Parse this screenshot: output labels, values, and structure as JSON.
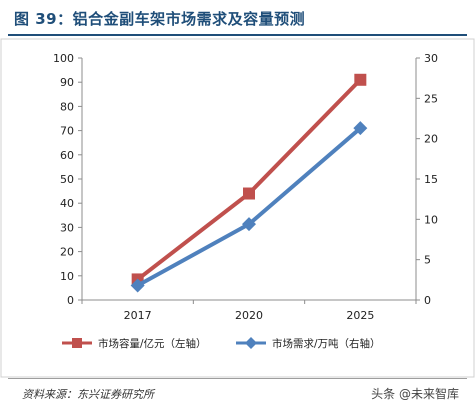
{
  "figure": {
    "title": "图 39：铝合金副车架市场需求及容量预测",
    "source": "资料来源：东兴证券研究所",
    "watermark": "头条 @未来智库"
  },
  "chart_data": {
    "type": "line",
    "title": "",
    "categories": [
      "2017",
      "2020",
      "2025"
    ],
    "y_left": {
      "min": 0,
      "max": 100,
      "step": 10,
      "ticks": [
        "0",
        "10",
        "20",
        "30",
        "40",
        "50",
        "60",
        "70",
        "80",
        "90",
        "100"
      ]
    },
    "y_right": {
      "min": 0,
      "max": 30,
      "step": 5,
      "ticks": [
        "0",
        "5",
        "10",
        "15",
        "20",
        "25",
        "30"
      ]
    },
    "grid": false,
    "legend_position": "bottom",
    "series": [
      {
        "name": "市场容量/亿元（左轴）",
        "axis": "left",
        "values": [
          8.5,
          44,
          91
        ],
        "color": "#c0504d",
        "marker": "square"
      },
      {
        "name": "市场需求/万吨（右轴）",
        "axis": "right",
        "values": [
          1.8,
          9.4,
          21.3
        ],
        "color": "#4f81bd",
        "marker": "diamond"
      }
    ]
  }
}
